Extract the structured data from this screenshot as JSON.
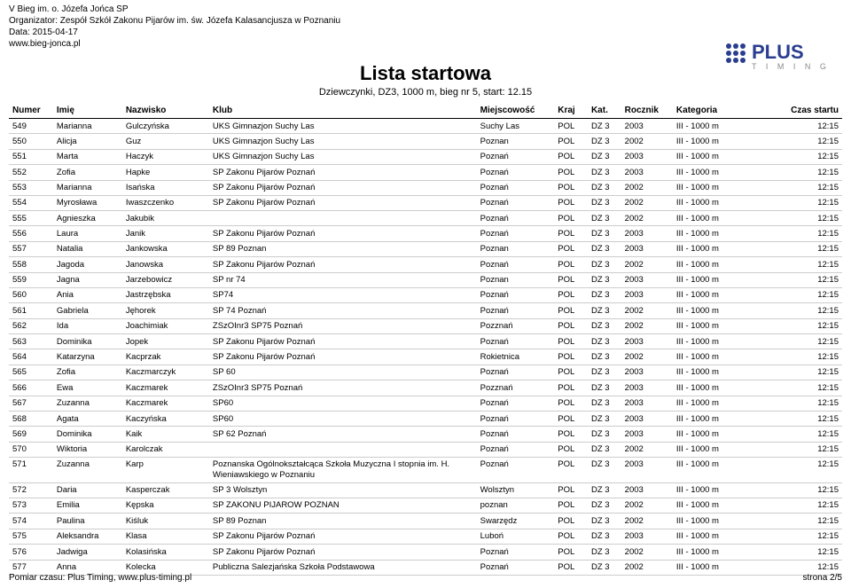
{
  "header": {
    "line1": "V Bieg im. o. Józefa Jońca SP",
    "line2": "Organizator: Zespół Szkół Zakonu Pijarów im. św. Józefa Kalasancjusza w Poznaniu",
    "line3": "Data: 2015-04-17",
    "line4": "www.bieg-jonca.pl"
  },
  "title": {
    "main": "Lista startowa",
    "sub": "Dziewczynki, DZ3, 1000 m, bieg nr 5, start: 12.15"
  },
  "logo": {
    "text_top": "PLUS",
    "text_bottom": "T I M I N G",
    "blue": "#2a3d8f",
    "gray": "#8a8a8a"
  },
  "columns": [
    "Numer",
    "Imię",
    "Nazwisko",
    "Klub",
    "Miejscowość",
    "Kraj",
    "Kat.",
    "Rocznik",
    "Kategoria",
    "Czas startu"
  ],
  "rows": [
    [
      "549",
      "Marianna",
      "Gulczyńska",
      "UKS Gimnazjon Suchy Las",
      "Suchy Las",
      "POL",
      "DZ 3",
      "2003",
      "III - 1000 m",
      "12:15"
    ],
    [
      "550",
      "Alicja",
      "Guz",
      "UKS Gimnazjon Suchy Las",
      "Poznan",
      "POL",
      "DZ 3",
      "2002",
      "III - 1000 m",
      "12:15"
    ],
    [
      "551",
      "Marta",
      "Haczyk",
      "UKS Gimnazjon Suchy Las",
      "Poznań",
      "POL",
      "DZ 3",
      "2003",
      "III - 1000 m",
      "12:15"
    ],
    [
      "552",
      "Zofia",
      "Hapke",
      "SP Zakonu Pijarów Poznań",
      "Poznań",
      "POL",
      "DZ 3",
      "2003",
      "III - 1000 m",
      "12:15"
    ],
    [
      "553",
      "Marianna",
      "Isańska",
      "SP Zakonu Pijarów Poznań",
      "Poznań",
      "POL",
      "DZ 3",
      "2002",
      "III - 1000 m",
      "12:15"
    ],
    [
      "554",
      "Myrosława",
      "Iwaszczenko",
      "SP Zakonu Pijarów Poznań",
      "Poznań",
      "POL",
      "DZ 3",
      "2002",
      "III - 1000 m",
      "12:15"
    ],
    [
      "555",
      "Agnieszka",
      "Jakubik",
      "",
      "Poznań",
      "POL",
      "DZ 3",
      "2002",
      "III - 1000 m",
      "12:15"
    ],
    [
      "556",
      "Laura",
      "Janik",
      "SP Zakonu Pijarów Poznań",
      "Poznań",
      "POL",
      "DZ 3",
      "2003",
      "III - 1000 m",
      "12:15"
    ],
    [
      "557",
      "Natalia",
      "Jankowska",
      "SP 89 Poznan",
      "Poznan",
      "POL",
      "DZ 3",
      "2003",
      "III - 1000 m",
      "12:15"
    ],
    [
      "558",
      "Jagoda",
      "Janowska",
      "SP Zakonu Pijarów Poznań",
      "Poznań",
      "POL",
      "DZ 3",
      "2002",
      "III - 1000 m",
      "12:15"
    ],
    [
      "559",
      "Jagna",
      "Jarzebowicz",
      "SP nr 74",
      "Poznan",
      "POL",
      "DZ 3",
      "2003",
      "III - 1000 m",
      "12:15"
    ],
    [
      "560",
      "Ania",
      "Jastrzębska",
      "SP74",
      "Poznań",
      "POL",
      "DZ 3",
      "2003",
      "III - 1000 m",
      "12:15"
    ],
    [
      "561",
      "Gabriela",
      "Jęhorek",
      "SP 74 Poznań",
      "Poznań",
      "POL",
      "DZ 3",
      "2002",
      "III - 1000 m",
      "12:15"
    ],
    [
      "562",
      "Ida",
      "Joachimiak",
      "ZSzOInr3 SP75 Poznań",
      "Pozznań",
      "POL",
      "DZ 3",
      "2002",
      "III - 1000 m",
      "12:15"
    ],
    [
      "563",
      "Dominika",
      "Jopek",
      "SP Zakonu Pijarów Poznań",
      "Poznań",
      "POL",
      "DZ 3",
      "2003",
      "III - 1000 m",
      "12:15"
    ],
    [
      "564",
      "Katarzyna",
      "Kacprzak",
      "SP Zakonu Pijarów Poznań",
      "Rokietnica",
      "POL",
      "DZ 3",
      "2002",
      "III - 1000 m",
      "12:15"
    ],
    [
      "565",
      "Zofia",
      "Kaczmarczyk",
      "SP 60",
      "Poznań",
      "POL",
      "DZ 3",
      "2003",
      "III - 1000 m",
      "12:15"
    ],
    [
      "566",
      "Ewa",
      "Kaczmarek",
      "ZSzOInr3 SP75 Poznań",
      "Pozznań",
      "POL",
      "DZ 3",
      "2003",
      "III - 1000 m",
      "12:15"
    ],
    [
      "567",
      "Zuzanna",
      "Kaczmarek",
      "SP60",
      "Poznań",
      "POL",
      "DZ 3",
      "2003",
      "III - 1000 m",
      "12:15"
    ],
    [
      "568",
      "Agata",
      "Kaczyńska",
      "SP60",
      "Poznań",
      "POL",
      "DZ 3",
      "2003",
      "III - 1000 m",
      "12:15"
    ],
    [
      "569",
      "Dominika",
      "Kaik",
      "SP 62 Poznań",
      "Poznań",
      "POL",
      "DZ 3",
      "2003",
      "III - 1000 m",
      "12:15"
    ],
    [
      "570",
      "Wiktoria",
      "Karolczak",
      "",
      "Poznań",
      "POL",
      "DZ 3",
      "2002",
      "III - 1000 m",
      "12:15"
    ],
    [
      "571",
      "Zuzanna",
      "Karp",
      "Poznanska Ogólnokształcąca Szkoła Muzyczna I stopnia im. H. Wieniawskiego w Poznaniu",
      "Poznań",
      "POL",
      "DZ 3",
      "2003",
      "III - 1000 m",
      "12:15"
    ],
    [
      "572",
      "Daria",
      "Kasperczak",
      "SP 3 Wolsztyn",
      "Wolsztyn",
      "POL",
      "DZ 3",
      "2003",
      "III - 1000 m",
      "12:15"
    ],
    [
      "573",
      "Emilia",
      "Kępska",
      "SP ZAKONU PIJAROW POZNAN",
      "poznan",
      "POL",
      "DZ 3",
      "2002",
      "III - 1000 m",
      "12:15"
    ],
    [
      "574",
      "Paulina",
      "Kiśluk",
      "SP 89 Poznan",
      "Swarzędz",
      "POL",
      "DZ 3",
      "2002",
      "III - 1000 m",
      "12:15"
    ],
    [
      "575",
      "Aleksandra",
      "Klasa",
      "SP Zakonu Pijarów Poznań",
      "Luboń",
      "POL",
      "DZ 3",
      "2003",
      "III - 1000 m",
      "12:15"
    ],
    [
      "576",
      "Jadwiga",
      "Kolasińska",
      "SP Zakonu Pijarów Poznań",
      "Poznań",
      "POL",
      "DZ 3",
      "2002",
      "III - 1000 m",
      "12:15"
    ],
    [
      "577",
      "Anna",
      "Kolecka",
      "Publiczna Salezjańska Szkoła Podstawowa",
      "Poznań",
      "POL",
      "DZ 3",
      "2002",
      "III - 1000 m",
      "12:15"
    ]
  ],
  "footer": {
    "left": "Pomiar czasu: Plus Timing, www.plus-timing.pl",
    "right": "strona 2/5"
  },
  "style": {
    "text_color": "#000000",
    "border_color": "#cccccc",
    "header_border": "#000000",
    "background": "#ffffff"
  }
}
